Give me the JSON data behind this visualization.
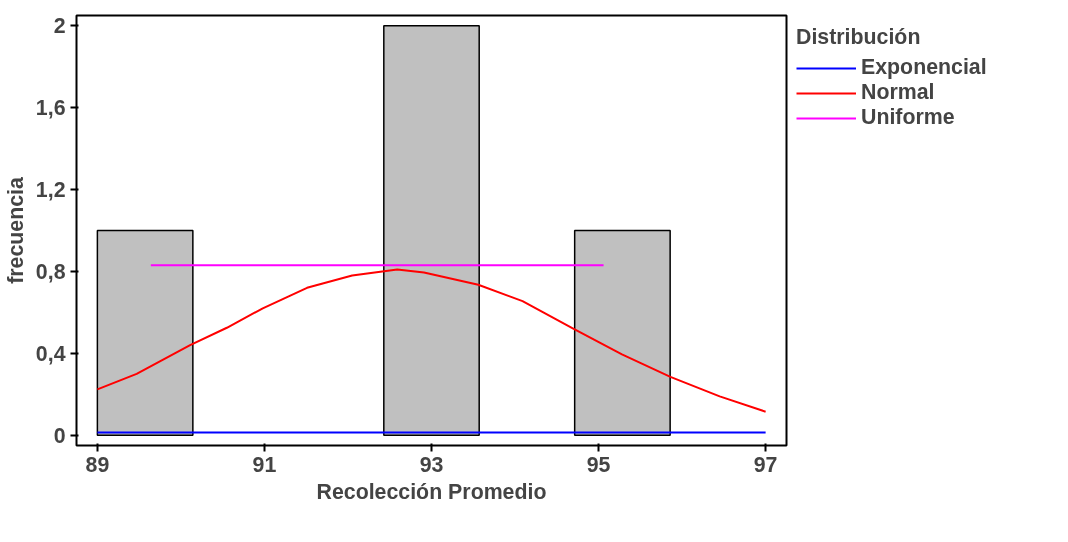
{
  "chart_data": {
    "type": "histogram",
    "xlabel": "Recolección Promedio",
    "ylabel": "frecuencia",
    "legend_title": "Distribución",
    "bins": [
      89,
      90.143,
      91.286,
      92.429,
      93.571,
      94.714,
      95.857,
      97
    ],
    "values": [
      1,
      0,
      0,
      2,
      0,
      1,
      0
    ],
    "color": "#c0c0c0",
    "series": [
      {
        "name": "Exponencial",
        "type": "line",
        "color": "#0000ff",
        "x": [
          89,
          97
        ],
        "values": [
          0.013,
          0.013
        ]
      },
      {
        "name": "Normal",
        "type": "line",
        "color": "#ff0000",
        "x": [
          89,
          89.47,
          90.11,
          90.55,
          90.98,
          91.51,
          92.05,
          92.59,
          92.91,
          93.56,
          94.09,
          94.68,
          95.28,
          95.86,
          96.45,
          97
        ],
        "values": [
          0.224,
          0.3,
          0.44,
          0.525,
          0.62,
          0.72,
          0.78,
          0.81,
          0.795,
          0.735,
          0.655,
          0.525,
          0.395,
          0.285,
          0.19,
          0.115
        ]
      },
      {
        "name": "Uniforme",
        "type": "line",
        "color": "#ff00ff",
        "x": [
          89.64,
          95.06
        ],
        "values": [
          0.83,
          0.83
        ]
      }
    ],
    "xlim": [
      88.75,
      97.25
    ],
    "ylim": [
      -0.05,
      2.05
    ],
    "xticks": [
      89,
      91,
      93,
      95,
      97
    ],
    "yticks": [
      0,
      {
        "value": 0.4,
        "label": "0,4"
      },
      {
        "value": 0.8,
        "label": "0,8"
      },
      {
        "value": 1.2,
        "label": "1,2"
      },
      {
        "value": 1.6,
        "label": "1,6"
      },
      2
    ],
    "grid": false,
    "legend": "top right"
  }
}
